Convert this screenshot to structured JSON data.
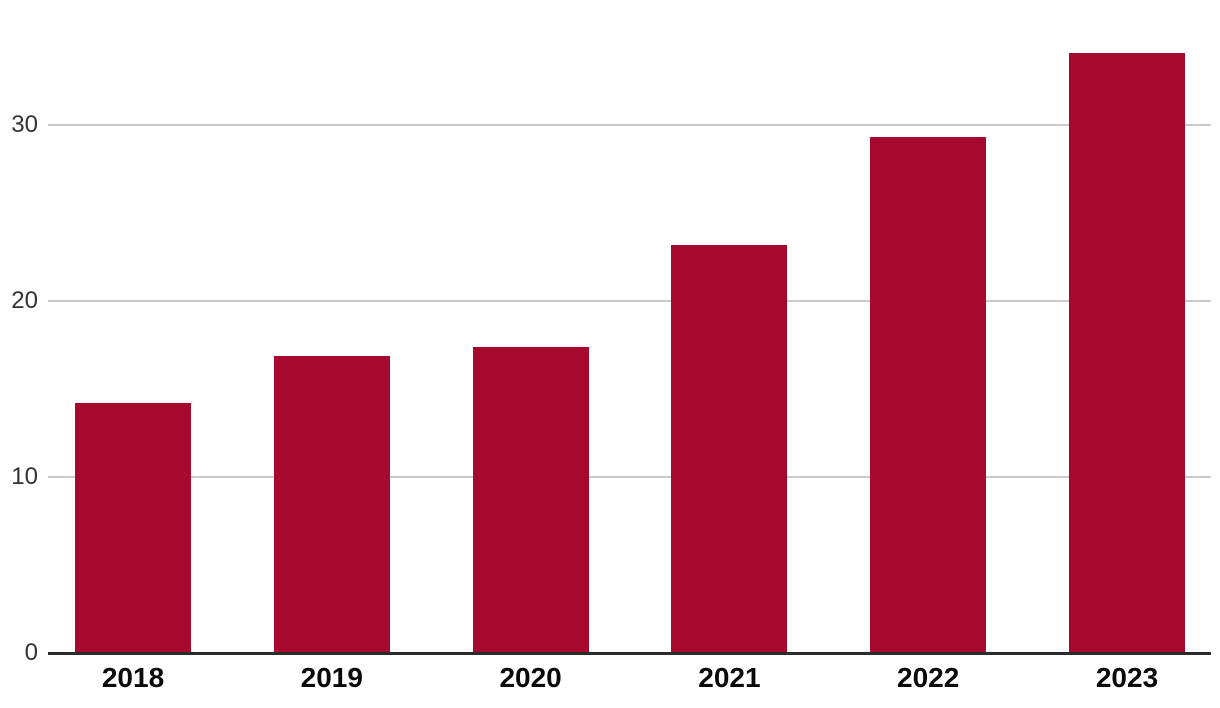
{
  "chart_data": {
    "type": "bar",
    "title": "",
    "xlabel": "",
    "ylabel": "",
    "categories": [
      "2018",
      "2019",
      "2020",
      "2021",
      "2022",
      "2023"
    ],
    "values": [
      14.2,
      16.9,
      17.4,
      23.2,
      29.3,
      34.1
    ],
    "yticks": [
      0,
      10,
      20,
      30
    ],
    "ylim": [
      0,
      37
    ],
    "grid": true,
    "legend_position": "none",
    "colors": {
      "bar": "#A6092E",
      "gridline": "#C9C9C9",
      "axis": "#2B2B2B",
      "y_tick_label": "#333333",
      "x_category_label": "#0A0A0A"
    }
  }
}
